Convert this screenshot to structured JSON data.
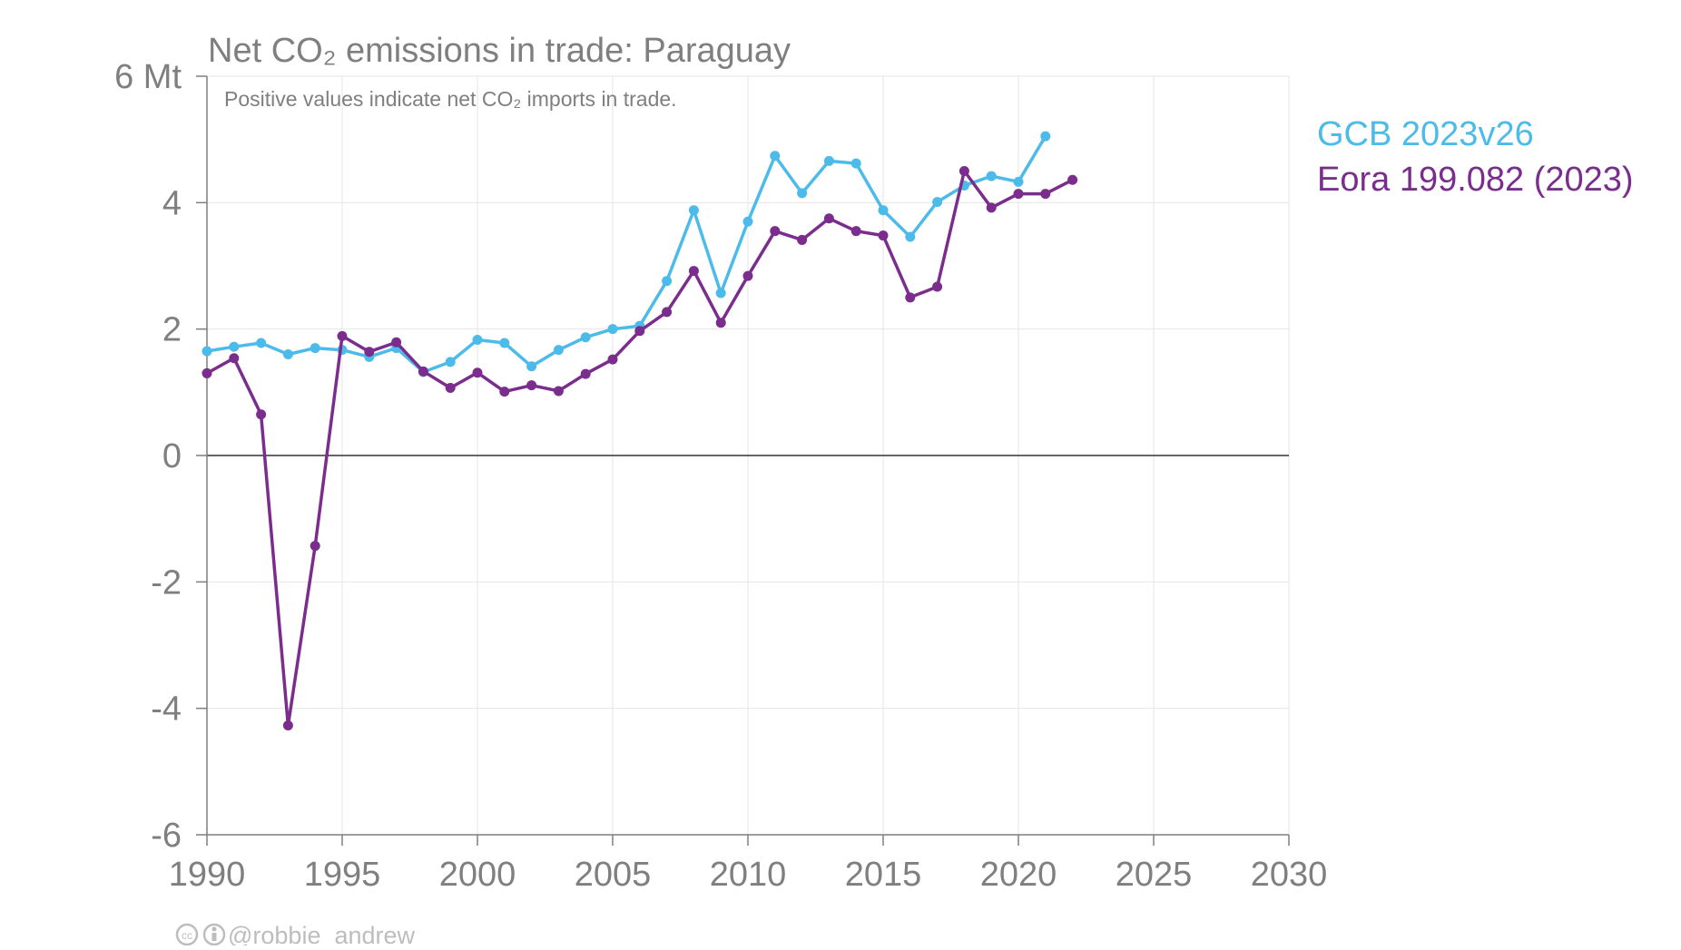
{
  "chart_data": {
    "type": "line",
    "title": "Net CO₂ emissions in trade: Paraguay",
    "subtitle": "Positive values indicate net CO₂ imports in trade.",
    "xlabel": "",
    "ylabel": "",
    "xlim": [
      1990,
      2030
    ],
    "ylim": [
      -6,
      6
    ],
    "x_ticks": [
      1990,
      1995,
      2000,
      2005,
      2010,
      2015,
      2020,
      2025,
      2030
    ],
    "y_ticks": [
      -6,
      -4,
      -2,
      0,
      2,
      4,
      6
    ],
    "y_tick_labels": [
      "-6",
      "-4",
      "-2",
      "0",
      "2",
      "4",
      "6 Mt"
    ],
    "grid": true,
    "legend_position": "right",
    "series": [
      {
        "name": "GCB 2023v26",
        "color": "#4dbbea",
        "x": [
          1990,
          1991,
          1992,
          1993,
          1994,
          1995,
          1996,
          1997,
          1998,
          1999,
          2000,
          2001,
          2002,
          2003,
          2004,
          2005,
          2006,
          2007,
          2008,
          2009,
          2010,
          2011,
          2012,
          2013,
          2014,
          2015,
          2016,
          2017,
          2018,
          2019,
          2020,
          2021
        ],
        "values": [
          1.65,
          1.72,
          1.78,
          1.6,
          1.7,
          1.67,
          1.56,
          1.7,
          1.32,
          1.48,
          1.83,
          1.78,
          1.41,
          1.67,
          1.87,
          2.0,
          2.05,
          2.76,
          3.88,
          2.57,
          3.7,
          4.74,
          4.15,
          4.66,
          4.62,
          3.88,
          3.46,
          4.01,
          4.27,
          4.42,
          4.33,
          5.05
        ]
      },
      {
        "name": "Eora 199.082 (2023)",
        "color": "#7b2d8e",
        "x": [
          1990,
          1991,
          1992,
          1993,
          1994,
          1995,
          1996,
          1997,
          1998,
          1999,
          2000,
          2001,
          2002,
          2003,
          2004,
          2005,
          2006,
          2007,
          2008,
          2009,
          2010,
          2011,
          2012,
          2013,
          2014,
          2015,
          2016,
          2017,
          2018,
          2019,
          2020,
          2021,
          2022
        ],
        "values": [
          1.3,
          1.54,
          0.65,
          -4.27,
          -1.43,
          1.89,
          1.64,
          1.79,
          1.33,
          1.07,
          1.31,
          1.01,
          1.11,
          1.02,
          1.29,
          1.52,
          1.97,
          2.27,
          2.92,
          2.1,
          2.84,
          3.55,
          3.41,
          3.75,
          3.55,
          3.48,
          2.5,
          2.67,
          4.5,
          3.92,
          4.14,
          4.14,
          4.36
        ]
      }
    ],
    "credit": "@robbie_andrew"
  }
}
